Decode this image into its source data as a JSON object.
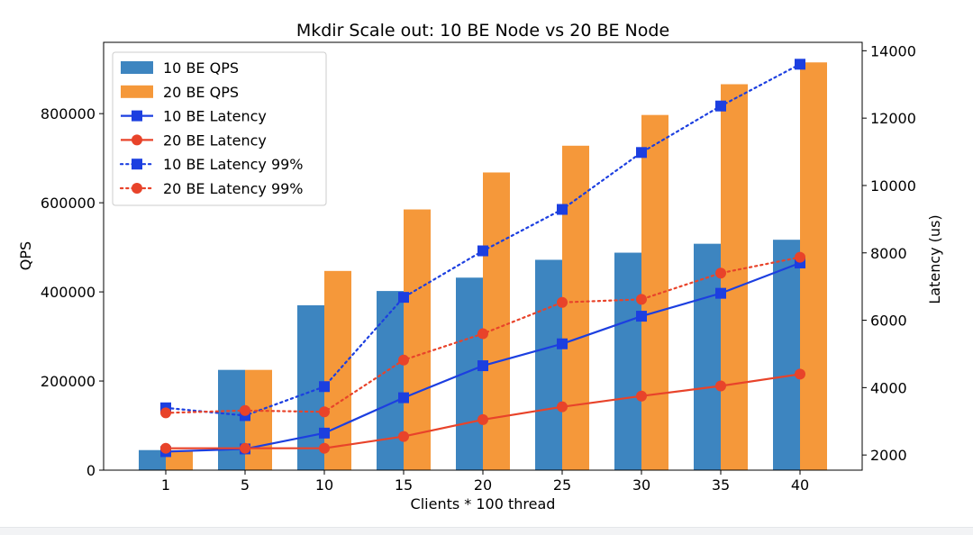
{
  "chart_data": {
    "type": "bar",
    "title": "Mkdir Scale out: 10 BE Node vs 20 BE Node",
    "xlabel": "Clients * 100 thread",
    "ylabel_left": "QPS",
    "ylabel_right": "Latency (us)",
    "categories": [
      "1",
      "5",
      "10",
      "15",
      "20",
      "25",
      "30",
      "35",
      "40"
    ],
    "ylim_left": [
      0,
      960000
    ],
    "ylim_right": [
      1550,
      14250
    ],
    "yticks_left": [
      0,
      200000,
      400000,
      600000,
      800000
    ],
    "yticks_left_labels": [
      "0",
      "200000",
      "400000",
      "600000",
      "800000"
    ],
    "yticks_right": [
      2000,
      4000,
      6000,
      8000,
      10000,
      12000,
      14000
    ],
    "yticks_right_labels": [
      "2000",
      "4000",
      "6000",
      "8000",
      "10000",
      "12000",
      "14000"
    ],
    "bar_series": [
      {
        "name": "10 BE QPS",
        "color": "#3d85c0",
        "values": [
          45000,
          225000,
          370000,
          402000,
          432000,
          472000,
          488000,
          508000,
          517000
        ]
      },
      {
        "name": "20 BE QPS",
        "color": "#f5983a",
        "values": [
          45000,
          225000,
          447000,
          585000,
          668000,
          728000,
          797000,
          866000,
          915000
        ]
      }
    ],
    "line_series": [
      {
        "name": "10 BE Latency",
        "color": "#1c3fe0",
        "style": "solid",
        "marker": "square",
        "values": [
          2100,
          2180,
          2650,
          3700,
          4650,
          5300,
          6120,
          6800,
          7700
        ]
      },
      {
        "name": "20 BE Latency",
        "color": "#e8432a",
        "style": "solid",
        "marker": "circle",
        "values": [
          2200,
          2200,
          2200,
          2550,
          3050,
          3430,
          3750,
          4050,
          4400
        ]
      },
      {
        "name": "10 BE Latency 99%",
        "color": "#1c3fe0",
        "style": "dotted",
        "marker": "square",
        "values": [
          3400,
          3170,
          4030,
          6680,
          8060,
          9290,
          10980,
          12360,
          13600
        ]
      },
      {
        "name": "20 BE Latency 99%",
        "color": "#e8432a",
        "style": "dotted",
        "marker": "circle",
        "values": [
          3250,
          3320,
          3280,
          4820,
          5600,
          6530,
          6620,
          7400,
          7870
        ]
      }
    ],
    "legend": [
      "10 BE QPS",
      "20 BE QPS",
      "10 BE Latency",
      "20 BE Latency",
      "10 BE Latency 99%",
      "20 BE Latency 99%"
    ],
    "legend_position": "top-left",
    "grid": false
  }
}
